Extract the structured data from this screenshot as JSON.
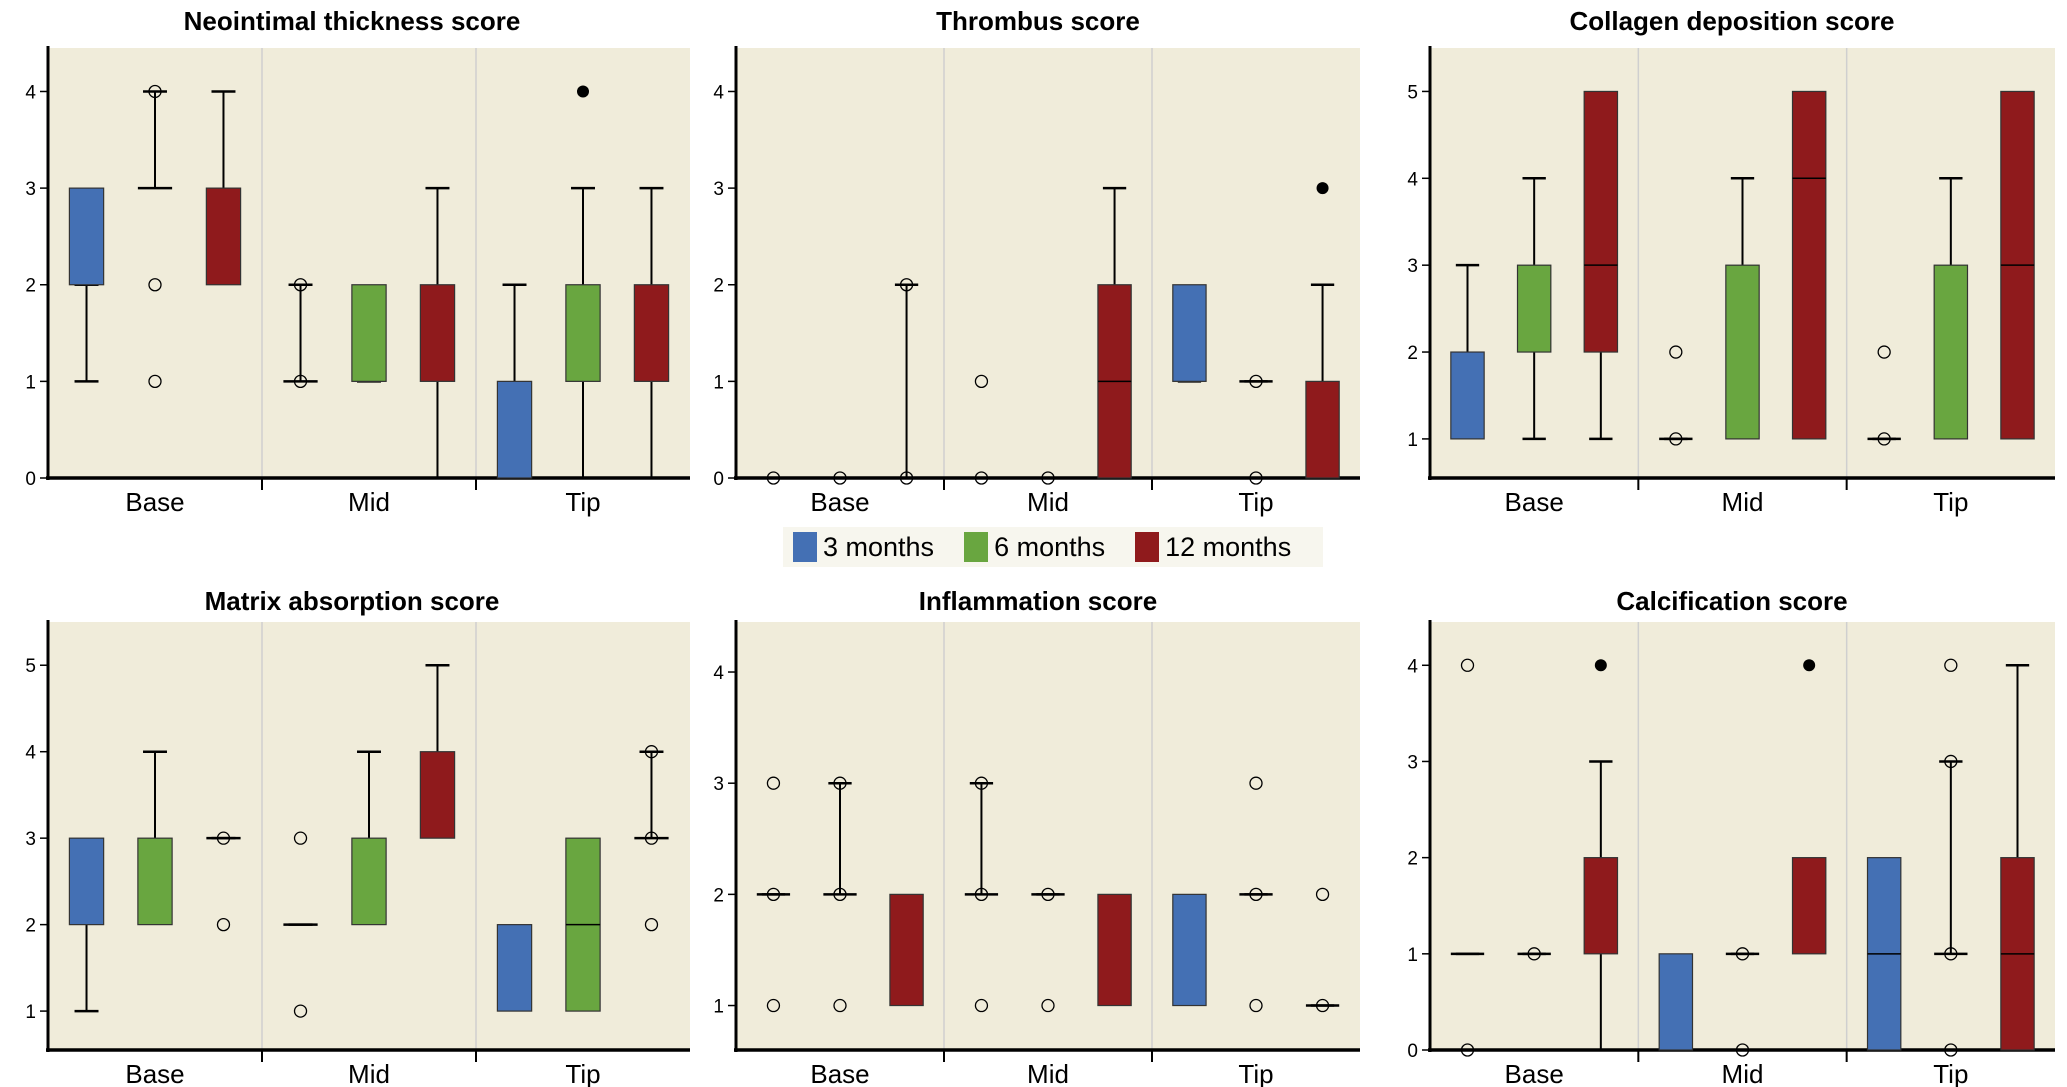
{
  "colors": {
    "3 months": "#4470b4",
    "6 months": "#69a640",
    "12 months": "#8f1a1c",
    "panel_bg": "#f0ecda",
    "separator": "#cfcfcf"
  },
  "legend": {
    "items": [
      {
        "label": "3 months",
        "key": "3 months"
      },
      {
        "label": "6 months",
        "key": "6 months"
      },
      {
        "label": "12 months",
        "key": "12 months"
      }
    ]
  },
  "chart_data": [
    {
      "type": "box",
      "title": "Neointimal thickness score",
      "categories": [
        "Base",
        "Mid",
        "Tip"
      ],
      "series_order": [
        "3 months",
        "6 months",
        "12 months"
      ],
      "ylim": [
        0,
        4.45
      ],
      "yticks": [
        0,
        1,
        2,
        3,
        4
      ],
      "boxes": {
        "Base": [
          {
            "q1": 2,
            "median": null,
            "q3": 3,
            "wlo": 1,
            "whi": 2
          },
          {
            "q1": 3,
            "median": 3,
            "q3": 3,
            "wlo": 3,
            "whi": 4,
            "outliers": [
              2,
              1,
              4
            ]
          },
          {
            "q1": 2,
            "median": null,
            "q3": 3,
            "wlo": 2,
            "whi": 4
          }
        ],
        "Mid": [
          {
            "q1": 1,
            "median": 1,
            "q3": 1,
            "wlo": 1,
            "whi": 2,
            "outliers": [
              1,
              2
            ]
          },
          {
            "q1": 1,
            "median": null,
            "q3": 2,
            "wlo": 1,
            "whi": 1
          },
          {
            "q1": 1,
            "median": null,
            "q3": 2,
            "wlo": 0,
            "whi": 3
          }
        ],
        "Tip": [
          {
            "q1": 0,
            "median": null,
            "q3": 1,
            "wlo": 0,
            "whi": 2
          },
          {
            "q1": 1,
            "median": null,
            "q3": 2,
            "wlo": 0,
            "whi": 3,
            "extremes": [
              4
            ]
          },
          {
            "q1": 1,
            "median": null,
            "q3": 2,
            "wlo": 0,
            "whi": 3
          }
        ]
      }
    },
    {
      "type": "box",
      "title": "Thrombus score",
      "categories": [
        "Base",
        "Mid",
        "Tip"
      ],
      "series_order": [
        "3 months",
        "6 months",
        "12 months"
      ],
      "ylim": [
        0,
        4.45
      ],
      "yticks": [
        0,
        1,
        2,
        3,
        4
      ],
      "boxes": {
        "Base": [
          {
            "outliers": [
              0
            ]
          },
          {
            "outliers": [
              0
            ]
          },
          {
            "q1": 0,
            "median": 0,
            "q3": 0,
            "wlo": 0,
            "whi": 2,
            "outliers": [
              0,
              2
            ]
          }
        ],
        "Mid": [
          {
            "outliers": [
              0,
              1
            ]
          },
          {
            "outliers": [
              0
            ]
          },
          {
            "q1": 0,
            "median": 1,
            "q3": 2,
            "wlo": 0,
            "whi": 3
          }
        ],
        "Tip": [
          {
            "q1": 1,
            "median": null,
            "q3": 2,
            "wlo": 1,
            "whi": 1
          },
          {
            "q1": 1,
            "median": 1,
            "q3": 1,
            "wlo": 1,
            "whi": 1,
            "outliers": [
              1,
              0
            ]
          },
          {
            "q1": 0,
            "median": null,
            "q3": 1,
            "wlo": 0,
            "whi": 2,
            "extremes": [
              3
            ]
          }
        ]
      }
    },
    {
      "type": "box",
      "title": "Collagen deposition score",
      "categories": [
        "Base",
        "Mid",
        "Tip"
      ],
      "series_order": [
        "3 months",
        "6 months",
        "12 months"
      ],
      "ylim": [
        0.55,
        5.5
      ],
      "yticks": [
        1,
        2,
        3,
        4,
        5
      ],
      "boxes": {
        "Base": [
          {
            "q1": 1,
            "median": null,
            "q3": 2,
            "wlo": 1,
            "whi": 3
          },
          {
            "q1": 2,
            "median": null,
            "q3": 3,
            "wlo": 1,
            "whi": 4
          },
          {
            "q1": 2,
            "median": 3,
            "q3": 5,
            "wlo": 1,
            "whi": 5
          }
        ],
        "Mid": [
          {
            "q1": 1,
            "median": 1,
            "q3": 1,
            "wlo": 1,
            "whi": 1,
            "outliers": [
              1,
              2
            ]
          },
          {
            "q1": 1,
            "median": null,
            "q3": 3,
            "wlo": 1,
            "whi": 4
          },
          {
            "q1": 1,
            "median": 4,
            "q3": 5,
            "wlo": 1,
            "whi": 5
          }
        ],
        "Tip": [
          {
            "q1": 1,
            "median": 1,
            "q3": 1,
            "wlo": 1,
            "whi": 1,
            "outliers": [
              1,
              2
            ]
          },
          {
            "q1": 1,
            "median": null,
            "q3": 3,
            "wlo": 1,
            "whi": 4
          },
          {
            "q1": 1,
            "median": 3,
            "q3": 5,
            "wlo": 1,
            "whi": 5
          }
        ]
      }
    },
    {
      "type": "box",
      "title": "Matrix absorption score",
      "categories": [
        "Base",
        "Mid",
        "Tip"
      ],
      "series_order": [
        "3 months",
        "6 months",
        "12 months"
      ],
      "ylim": [
        0.55,
        5.5
      ],
      "yticks": [
        1,
        2,
        3,
        4,
        5
      ],
      "boxes": {
        "Base": [
          {
            "q1": 2,
            "median": null,
            "q3": 3,
            "wlo": 1,
            "whi": 3
          },
          {
            "q1": 2,
            "median": null,
            "q3": 3,
            "wlo": 2,
            "whi": 4
          },
          {
            "q1": 3,
            "median": 3,
            "q3": 3,
            "wlo": 3,
            "whi": 3,
            "outliers": [
              3,
              2
            ]
          }
        ],
        "Mid": [
          {
            "q1": 2,
            "median": 2,
            "q3": 2,
            "wlo": 2,
            "whi": 2,
            "outliers": [
              3,
              1
            ]
          },
          {
            "q1": 2,
            "median": null,
            "q3": 3,
            "wlo": 2,
            "whi": 4
          },
          {
            "q1": 3,
            "median": null,
            "q3": 4,
            "wlo": 3,
            "whi": 5
          }
        ],
        "Tip": [
          {
            "q1": 1,
            "median": null,
            "q3": 2,
            "wlo": 1,
            "whi": 2
          },
          {
            "q1": 1,
            "median": 2,
            "q3": 3,
            "wlo": 1,
            "whi": 3
          },
          {
            "q1": 3,
            "median": 3,
            "q3": 3,
            "wlo": 3,
            "whi": 4,
            "outliers": [
              4,
              3,
              2
            ]
          }
        ]
      }
    },
    {
      "type": "box",
      "title": "Inflammation score",
      "categories": [
        "Base",
        "Mid",
        "Tip"
      ],
      "series_order": [
        "3 months",
        "6 months",
        "12 months"
      ],
      "ylim": [
        0.6,
        4.45
      ],
      "yticks": [
        1,
        2,
        3,
        4
      ],
      "boxes": {
        "Base": [
          {
            "q1": 2,
            "median": 2,
            "q3": 2,
            "wlo": 2,
            "whi": 2,
            "outliers": [
              3,
              2,
              1
            ]
          },
          {
            "q1": 2,
            "median": 2,
            "q3": 2,
            "wlo": 2,
            "whi": 3,
            "outliers": [
              3,
              2,
              1
            ]
          },
          {
            "q1": 1,
            "median": null,
            "q3": 2,
            "wlo": 1,
            "whi": 2
          }
        ],
        "Mid": [
          {
            "q1": 2,
            "median": 2,
            "q3": 2,
            "wlo": 2,
            "whi": 3,
            "outliers": [
              3,
              2,
              1
            ]
          },
          {
            "q1": 2,
            "median": 2,
            "q3": 2,
            "wlo": 2,
            "whi": 2,
            "outliers": [
              2,
              1
            ]
          },
          {
            "q1": 1,
            "median": null,
            "q3": 2,
            "wlo": 1,
            "whi": 2
          }
        ],
        "Tip": [
          {
            "q1": 1,
            "median": null,
            "q3": 2,
            "wlo": 1,
            "whi": 2
          },
          {
            "q1": 2,
            "median": 2,
            "q3": 2,
            "wlo": 2,
            "whi": 2,
            "outliers": [
              3,
              2,
              1
            ]
          },
          {
            "q1": 1,
            "median": 1,
            "q3": 1,
            "wlo": 1,
            "whi": 1,
            "outliers": [
              2,
              1
            ]
          }
        ]
      }
    },
    {
      "type": "box",
      "title": "Calcification score",
      "categories": [
        "Base",
        "Mid",
        "Tip"
      ],
      "series_order": [
        "3 months",
        "6 months",
        "12 months"
      ],
      "ylim": [
        0,
        4.45
      ],
      "yticks": [
        0,
        1,
        2,
        3,
        4
      ],
      "boxes": {
        "Base": [
          {
            "q1": 1,
            "median": 1,
            "q3": 1,
            "wlo": 1,
            "whi": 1,
            "outliers": [
              4,
              0
            ]
          },
          {
            "q1": 1,
            "median": 1,
            "q3": 1,
            "wlo": 1,
            "whi": 1,
            "outliers": [
              1
            ]
          },
          {
            "q1": 1,
            "median": null,
            "q3": 2,
            "wlo": 0,
            "whi": 3,
            "extremes": [
              4
            ]
          }
        ],
        "Mid": [
          {
            "q1": 0,
            "median": null,
            "q3": 1,
            "wlo": 0,
            "whi": 1
          },
          {
            "q1": 1,
            "median": 1,
            "q3": 1,
            "wlo": 1,
            "whi": 1,
            "outliers": [
              1,
              0
            ]
          },
          {
            "q1": 1,
            "median": null,
            "q3": 2,
            "wlo": 1,
            "whi": 2,
            "extremes": [
              4
            ]
          }
        ],
        "Tip": [
          {
            "q1": 0,
            "median": 1,
            "q3": 2,
            "wlo": 0,
            "whi": 2
          },
          {
            "q1": 1,
            "median": 1,
            "q3": 1,
            "wlo": 1,
            "whi": 3,
            "outliers": [
              4,
              3,
              1,
              0
            ]
          },
          {
            "q1": 0,
            "median": 1,
            "q3": 2,
            "wlo": 0,
            "whi": 4
          }
        ]
      }
    }
  ]
}
